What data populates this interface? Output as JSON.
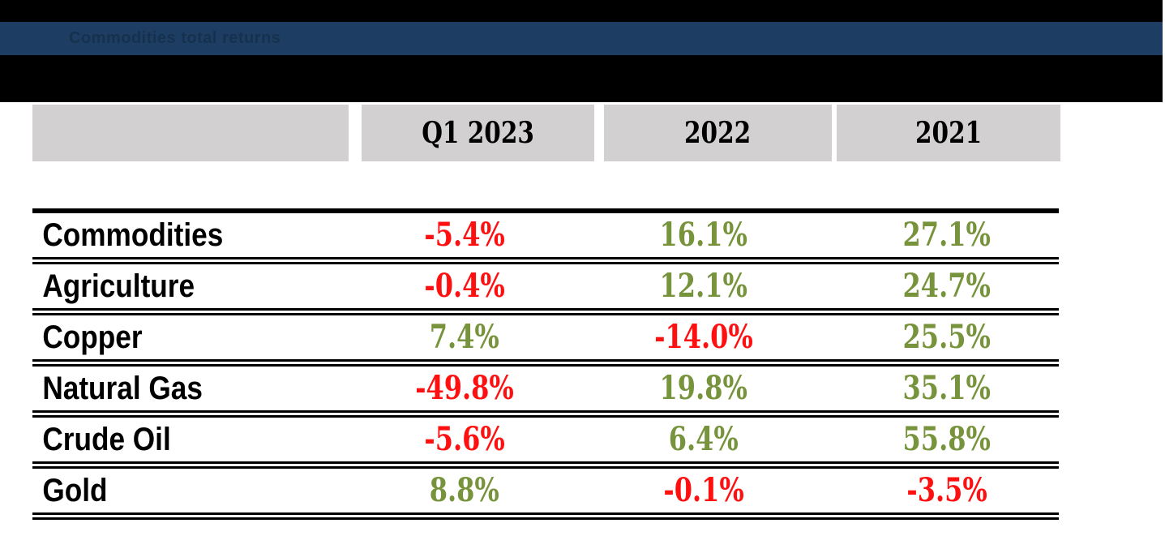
{
  "banner": {
    "title": "Commodities total returns"
  },
  "table": {
    "columns": [
      "",
      "Q1 2023",
      "2022",
      "2021"
    ],
    "rows": [
      {
        "label": "Commodities",
        "cells": [
          "-5.4%",
          "16.1%",
          "27.1%"
        ]
      },
      {
        "label": "Agriculture",
        "cells": [
          "-0.4%",
          "12.1%",
          "24.7%"
        ]
      },
      {
        "label": "Copper",
        "cells": [
          "7.4%",
          "-14.0%",
          "25.5%"
        ]
      },
      {
        "label": "Natural Gas",
        "cells": [
          "-49.8%",
          "19.8%",
          "35.1%"
        ]
      },
      {
        "label": "Crude Oil",
        "cells": [
          "-5.6%",
          "6.4%",
          "55.8%"
        ]
      },
      {
        "label": "Gold",
        "cells": [
          "8.8%",
          "-0.1%",
          "-3.5%"
        ]
      }
    ]
  },
  "colors": {
    "positive": "#77933c",
    "negative": "#ff1010",
    "banner_bg": "#1d3d63",
    "banner_text": "#16314e",
    "header_cell_bg": "#d2d0d0",
    "rule": "#000000"
  },
  "chart_data": {
    "type": "table",
    "title": "Commodities total returns",
    "columns": [
      "Q1 2023",
      "2022",
      "2021"
    ],
    "rows": [
      {
        "label": "Commodities",
        "values": [
          -5.4,
          16.1,
          27.1
        ]
      },
      {
        "label": "Agriculture",
        "values": [
          -0.4,
          12.1,
          24.7
        ]
      },
      {
        "label": "Copper",
        "values": [
          7.4,
          -14.0,
          25.5
        ]
      },
      {
        "label": "Natural Gas",
        "values": [
          -49.8,
          19.8,
          35.1
        ]
      },
      {
        "label": "Crude Oil",
        "values": [
          -5.6,
          6.4,
          55.8
        ]
      },
      {
        "label": "Gold",
        "values": [
          8.8,
          -0.1,
          -3.5
        ]
      }
    ],
    "value_format": "percent",
    "color_rule": "negative values red, positive values olive green",
    "layout": "row labels left-aligned bold; value columns centered; double black rules between rows"
  }
}
